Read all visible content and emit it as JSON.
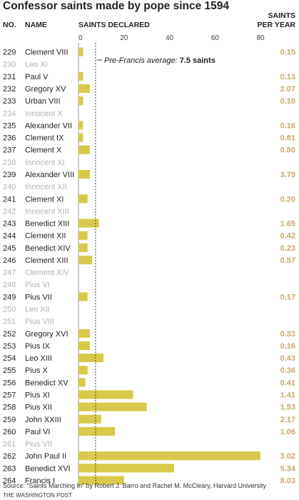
{
  "chart_data": {
    "type": "bar",
    "title": "Confessor saints made by pope since 1594",
    "columns": {
      "no": "NO.",
      "name": "NAME",
      "saints": "SAINTS DECLARED",
      "per_year_line1": "SAINTS",
      "per_year_line2": "PER YEAR"
    },
    "xlim": [
      0,
      80
    ],
    "x_ticks": [
      0,
      20,
      40,
      60,
      80
    ],
    "average": {
      "value": 7.5,
      "label": "Pre-Francis average:",
      "value_label": "7.5 saints"
    },
    "rows": [
      {
        "no": "229",
        "name": "Clement VIII",
        "saints": 2,
        "per_year": "0.15"
      },
      {
        "no": "230",
        "name": "Leo XI",
        "saints": 0,
        "per_year": ""
      },
      {
        "no": "231",
        "name": "Paul V",
        "saints": 2,
        "per_year": "0.13"
      },
      {
        "no": "232",
        "name": "Gregory XV",
        "saints": 5,
        "per_year": "2.07"
      },
      {
        "no": "233",
        "name": "Urban VIII",
        "saints": 2,
        "per_year": "0.10"
      },
      {
        "no": "234",
        "name": "Innocent X",
        "saints": 0,
        "per_year": ""
      },
      {
        "no": "235",
        "name": "Alexander VII",
        "saints": 2,
        "per_year": "0.16"
      },
      {
        "no": "236",
        "name": "Clement IX",
        "saints": 2,
        "per_year": "0.81"
      },
      {
        "no": "237",
        "name": "Clement X",
        "saints": 5,
        "per_year": "0.80"
      },
      {
        "no": "238",
        "name": "Innocent XI",
        "saints": 0,
        "per_year": ""
      },
      {
        "no": "239",
        "name": "Alexander VIII",
        "saints": 5,
        "per_year": "3.79"
      },
      {
        "no": "240",
        "name": "Innocent XII",
        "saints": 0,
        "per_year": ""
      },
      {
        "no": "241",
        "name": "Clement XI",
        "saints": 4,
        "per_year": "0.20"
      },
      {
        "no": "242",
        "name": "Innocent XIII",
        "saints": 0,
        "per_year": ""
      },
      {
        "no": "243",
        "name": "Benedict XIII",
        "saints": 9,
        "per_year": "1.65"
      },
      {
        "no": "244",
        "name": "Clement XII",
        "saints": 4,
        "per_year": "0.42"
      },
      {
        "no": "245",
        "name": "Benedict XIV",
        "saints": 4,
        "per_year": "0.23"
      },
      {
        "no": "246",
        "name": "Clement XIII",
        "saints": 6,
        "per_year": "0.57"
      },
      {
        "no": "247",
        "name": "Clement XIV",
        "saints": 0,
        "per_year": ""
      },
      {
        "no": "248",
        "name": "Pius VI",
        "saints": 0,
        "per_year": ""
      },
      {
        "no": "249",
        "name": "Pius VII",
        "saints": 4,
        "per_year": "0.17"
      },
      {
        "no": "250",
        "name": "Leo XII",
        "saints": 0,
        "per_year": ""
      },
      {
        "no": "251",
        "name": "Pius VIII",
        "saints": 0,
        "per_year": ""
      },
      {
        "no": "252",
        "name": "Gregory XVI",
        "saints": 5,
        "per_year": "0.33"
      },
      {
        "no": "253",
        "name": "Pius IX",
        "saints": 5,
        "per_year": "0.16"
      },
      {
        "no": "254",
        "name": "Leo XIII",
        "saints": 11,
        "per_year": "0.43"
      },
      {
        "no": "255",
        "name": "Pius X",
        "saints": 4,
        "per_year": "0.36"
      },
      {
        "no": "256",
        "name": "Benedict XV",
        "saints": 3,
        "per_year": "0.41"
      },
      {
        "no": "257",
        "name": "Pius XI",
        "saints": 24,
        "per_year": "1.41"
      },
      {
        "no": "258",
        "name": "Pius XII",
        "saints": 30,
        "per_year": "1.53"
      },
      {
        "no": "259",
        "name": "John XXIII",
        "saints": 10,
        "per_year": "2.17"
      },
      {
        "no": "260",
        "name": "Paul VI",
        "saints": 16,
        "per_year": "1.06"
      },
      {
        "no": "261",
        "name": "Pius VII",
        "saints": 0,
        "per_year": ""
      },
      {
        "no": "262",
        "name": "John Paul II",
        "saints": 80,
        "per_year": "3.02"
      },
      {
        "no": "263",
        "name": "Benedict XVI",
        "saints": 42,
        "per_year": "5.34"
      },
      {
        "no": "264",
        "name": "Francis I",
        "saints": 20,
        "per_year": "8.03"
      }
    ],
    "source": "Source: “Saints Marching In” by Robert J. Barro and Rachel M. McCleary, Harvard University",
    "credit": "THE WASHINGTON POST"
  },
  "colors": {
    "bar": "#d9c94a",
    "per_year": "#c9a96a",
    "text": "#222222",
    "muted": "#b3b3b3",
    "rule": "#999999"
  }
}
